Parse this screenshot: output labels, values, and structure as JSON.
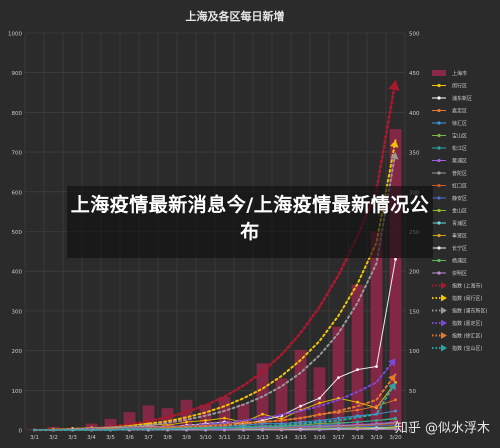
{
  "overlay_title": "上海疫情最新消息今/上海疫情最新情况公布",
  "watermark": "知乎 @似水浮木",
  "chart_data": {
    "type": "bar",
    "title": "上海及各区每日新增",
    "categories": [
      "3/1",
      "3/2",
      "3/3",
      "3/4",
      "3/5",
      "3/6",
      "3/7",
      "3/8",
      "3/9",
      "3/10",
      "3/11",
      "3/12",
      "3/13",
      "3/14",
      "3/15",
      "3/16",
      "3/17",
      "3/18",
      "3/19",
      "3/20"
    ],
    "ylim_left": [
      0,
      1000
    ],
    "yticks_left": [
      "0",
      "100",
      "200",
      "300",
      "400",
      "500",
      "600",
      "700",
      "800",
      "900",
      "1000"
    ],
    "ylim_right": [
      0,
      500
    ],
    "yticks_right": [
      "0",
      "50",
      "100",
      "150",
      "200",
      "250",
      "300",
      "350",
      "400",
      "450",
      "500"
    ],
    "grid": true,
    "legend_position": "right",
    "colors": {
      "bar": "#8a2848",
      "background": "#2b2b2b",
      "grid": "#444444",
      "text": "#cccccc"
    },
    "bar_series": {
      "name": "上海市",
      "axis": "left",
      "values": [
        2,
        8,
        5,
        16,
        28,
        45,
        62,
        55,
        76,
        64,
        83,
        65,
        168,
        130,
        202,
        158,
        260,
        366,
        500,
        758
      ]
    },
    "line_series": [
      {
        "name": "闵行区",
        "color": "#f2c300",
        "values": [
          0,
          1,
          2,
          3,
          4,
          6,
          8,
          6,
          10,
          12,
          15,
          10,
          20,
          14,
          25,
          34,
          40,
          35,
          28,
          60
        ]
      },
      {
        "name": "浦东新区",
        "color": "#ffffff",
        "values": [
          0,
          0,
          1,
          2,
          3,
          3,
          5,
          4,
          6,
          8,
          10,
          8,
          12,
          18,
          30,
          40,
          66,
          76,
          80,
          215
        ]
      },
      {
        "name": "嘉定区",
        "color": "#e07b2e",
        "values": [
          0,
          0,
          0,
          1,
          2,
          3,
          4,
          5,
          5,
          6,
          8,
          10,
          10,
          12,
          15,
          20,
          22,
          25,
          30,
          38
        ]
      },
      {
        "name": "徐汇区",
        "color": "#3b9ad9",
        "values": [
          0,
          0,
          0,
          0,
          1,
          2,
          2,
          3,
          3,
          4,
          5,
          6,
          8,
          8,
          10,
          12,
          15,
          18,
          20,
          24
        ]
      },
      {
        "name": "宝山区",
        "color": "#7ab648",
        "values": [
          0,
          0,
          0,
          0,
          0,
          1,
          1,
          2,
          2,
          3,
          3,
          4,
          4,
          5,
          6,
          8,
          9,
          10,
          12,
          14
        ]
      },
      {
        "name": "松江区",
        "color": "#2ba6a6",
        "values": [
          0,
          0,
          0,
          0,
          0,
          0,
          1,
          1,
          1,
          2,
          2,
          3,
          3,
          4,
          5,
          6,
          8,
          10,
          12,
          15
        ]
      },
      {
        "name": "黄浦区",
        "color": "#a45ee5",
        "values": [
          0,
          0,
          0,
          0,
          0,
          0,
          0,
          1,
          1,
          1,
          2,
          2,
          3,
          3,
          4,
          5,
          6,
          7,
          8,
          10
        ]
      },
      {
        "name": "普陀区",
        "color": "#999999",
        "values": [
          0,
          0,
          0,
          0,
          0,
          0,
          0,
          0,
          1,
          1,
          1,
          2,
          2,
          3,
          3,
          4,
          5,
          6,
          7,
          9
        ]
      },
      {
        "name": "虹口区",
        "color": "#c45a28",
        "values": [
          0,
          0,
          0,
          0,
          0,
          0,
          0,
          0,
          0,
          1,
          1,
          1,
          2,
          2,
          3,
          3,
          4,
          5,
          6,
          8
        ]
      },
      {
        "name": "静安区",
        "color": "#4a6cd4",
        "values": [
          0,
          0,
          0,
          0,
          0,
          0,
          0,
          0,
          0,
          0,
          1,
          1,
          1,
          2,
          2,
          3,
          3,
          4,
          5,
          6
        ]
      },
      {
        "name": "金山区",
        "color": "#8fb82e",
        "values": [
          0,
          0,
          0,
          0,
          0,
          0,
          0,
          0,
          0,
          0,
          0,
          1,
          1,
          1,
          1,
          2,
          2,
          3,
          3,
          4
        ]
      },
      {
        "name": "青浦区",
        "color": "#6fd6d6",
        "values": [
          0,
          0,
          0,
          0,
          0,
          0,
          0,
          0,
          0,
          0,
          0,
          0,
          1,
          1,
          1,
          1,
          2,
          2,
          3,
          3
        ]
      },
      {
        "name": "奉贤区",
        "color": "#d4a017",
        "values": [
          0,
          0,
          0,
          0,
          0,
          0,
          0,
          0,
          0,
          0,
          0,
          0,
          0,
          1,
          1,
          1,
          1,
          2,
          2,
          3
        ]
      },
      {
        "name": "长宁区",
        "color": "#e8e8e8",
        "values": [
          0,
          0,
          0,
          0,
          0,
          0,
          0,
          0,
          0,
          0,
          0,
          0,
          0,
          0,
          1,
          1,
          1,
          1,
          2,
          2
        ]
      },
      {
        "name": "杨浦区",
        "color": "#5cb85c",
        "values": [
          0,
          0,
          0,
          0,
          0,
          0,
          0,
          0,
          0,
          0,
          0,
          0,
          0,
          0,
          0,
          1,
          1,
          1,
          1,
          2
        ]
      },
      {
        "name": "崇明区",
        "color": "#c08bd6",
        "values": [
          0,
          0,
          0,
          0,
          0,
          0,
          0,
          0,
          0,
          0,
          0,
          0,
          0,
          0,
          0,
          0,
          1,
          1,
          1,
          1
        ]
      }
    ],
    "trend_series": [
      {
        "name": "指数 (上海市)",
        "color": "#a8192e",
        "axis": "left",
        "values": [
          0,
          0,
          2,
          4,
          8,
          14,
          22,
          32,
          45,
          62,
          84,
          112,
          146,
          190,
          244,
          310,
          390,
          488,
          604,
          880
        ]
      },
      {
        "name": "指数 (闵行区)",
        "color": "#f2c300",
        "axis": "right",
        "values": [
          0,
          0,
          1,
          2,
          3,
          5,
          8,
          11,
          16,
          22,
          30,
          40,
          52,
          68,
          88,
          112,
          144,
          184,
          236,
          365
        ]
      },
      {
        "name": "指数 (浦东新区)",
        "color": "#999999",
        "axis": "right",
        "values": [
          0,
          0,
          1,
          2,
          3,
          4,
          6,
          9,
          13,
          18,
          24,
          32,
          42,
          55,
          72,
          94,
          122,
          160,
          210,
          350
        ]
      },
      {
        "name": "指数 (嘉定区)",
        "color": "#7b4ad4",
        "axis": "right",
        "values": [
          0,
          0,
          0,
          1,
          1,
          2,
          3,
          4,
          5,
          7,
          9,
          12,
          15,
          19,
          24,
          30,
          38,
          48,
          60,
          90
        ]
      },
      {
        "name": "指数 (徐汇区)",
        "color": "#e07b2e",
        "axis": "right",
        "values": [
          0,
          0,
          0,
          0,
          1,
          1,
          2,
          3,
          4,
          5,
          6,
          8,
          10,
          12,
          15,
          19,
          24,
          30,
          38,
          70
        ]
      },
      {
        "name": "指数 (宝山区)",
        "color": "#2ba6a6",
        "axis": "right",
        "values": [
          0,
          0,
          0,
          0,
          0,
          1,
          1,
          1,
          2,
          2,
          3,
          4,
          5,
          6,
          8,
          10,
          12,
          16,
          20,
          60
        ]
      }
    ]
  }
}
